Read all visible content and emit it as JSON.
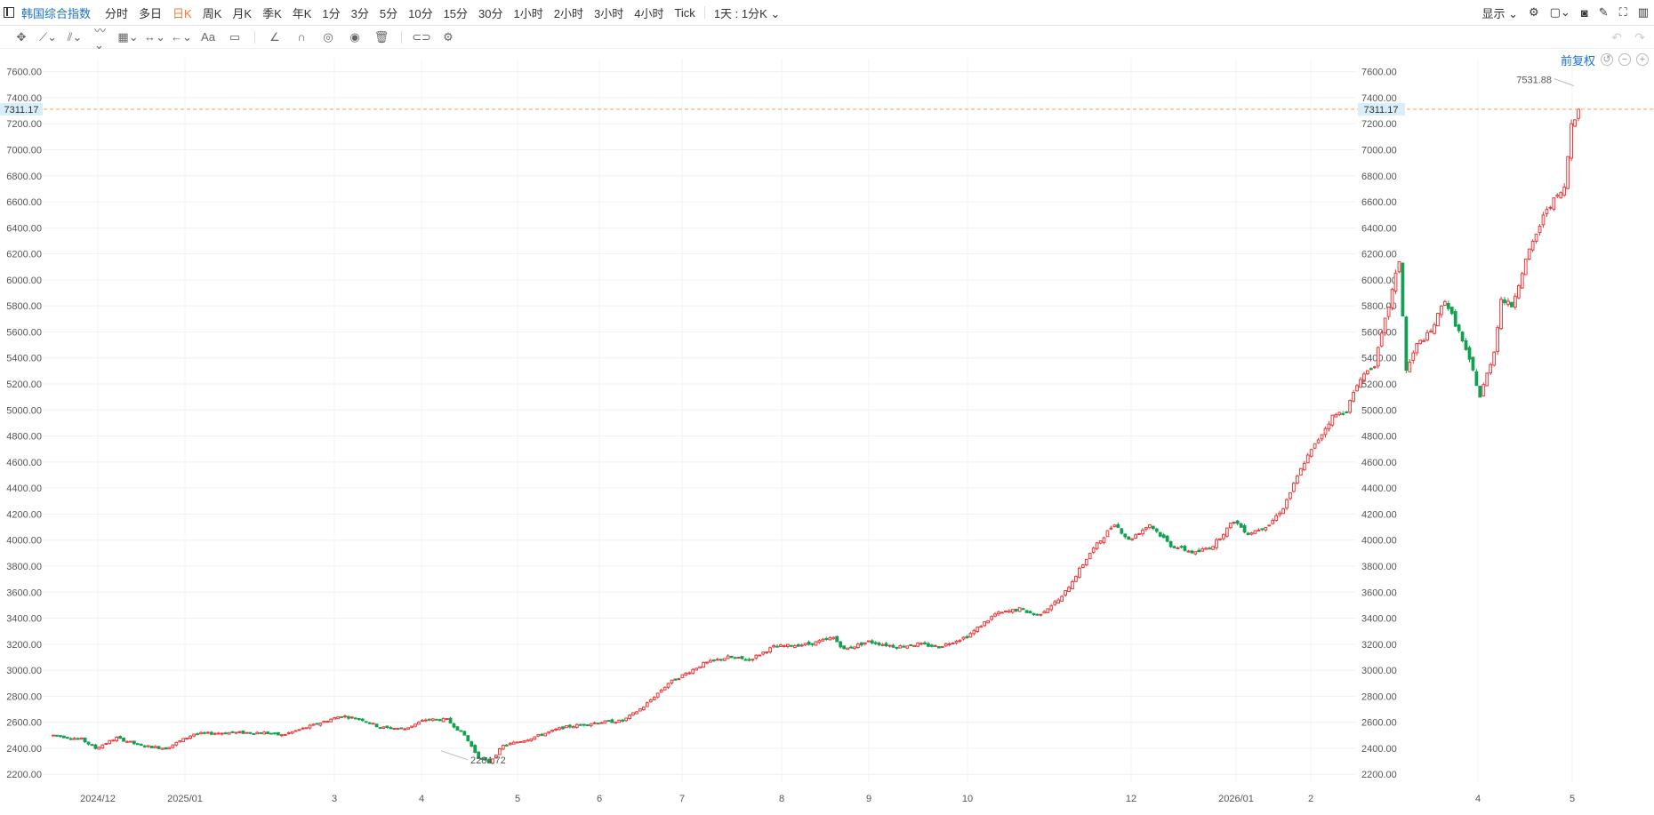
{
  "header": {
    "symbol": "韩国综合指数",
    "periods": [
      "分时",
      "多日",
      "日K",
      "周K",
      "月K",
      "季K",
      "年K",
      "1分",
      "3分",
      "5分",
      "10分",
      "15分",
      "30分",
      "1小时",
      "2小时",
      "3小时",
      "4小时",
      "Tick"
    ],
    "active_period": "日K",
    "kline_select": "1天 : 1分K",
    "display_label": "显示"
  },
  "adjust_label": "前复权",
  "colors": {
    "up": "#e83a3a",
    "down": "#12a150",
    "ref_line": "#f0a050",
    "label_bg": "#d9eefb"
  },
  "chart_data": {
    "type": "candlestick",
    "ylim": [
      2140,
      7700
    ],
    "yticks": [
      2200,
      2400,
      2600,
      2800,
      3000,
      3200,
      3400,
      3600,
      3800,
      4000,
      4200,
      4400,
      4600,
      4800,
      5000,
      5200,
      5400,
      5600,
      5800,
      6000,
      6200,
      6400,
      6600,
      6800,
      7000,
      7200,
      7400,
      7600
    ],
    "ytick_labels": [
      "2200.00",
      "2400.00",
      "2600.00",
      "2800.00",
      "3000.00",
      "3200.00",
      "3400.00",
      "3600.00",
      "3800.00",
      "4000.00",
      "4200.00",
      "4400.00",
      "4600.00",
      "4800.00",
      "5000.00",
      "5200.00",
      "5400.00",
      "5600.00",
      "5800.00",
      "6000.00",
      "6200.00",
      "6400.00",
      "6600.00",
      "6800.00",
      "7000.00",
      "7200.00",
      "7400.00",
      "7600.00"
    ],
    "xticks": [
      "2024/12",
      "2025/01",
      "3",
      "4",
      "5",
      "6",
      "7",
      "8",
      "9",
      "10",
      "12",
      "2026/01",
      "2",
      "4",
      "5"
    ],
    "current_price": 7311.17,
    "current_price_label": "7311.17",
    "max_label": "7531.88",
    "min_label": "2284.72",
    "grid": true,
    "trend": [
      {
        "t": 0,
        "v": 2500
      },
      {
        "t": 8,
        "v": 2470
      },
      {
        "t": 12,
        "v": 2400
      },
      {
        "t": 18,
        "v": 2480
      },
      {
        "t": 25,
        "v": 2420
      },
      {
        "t": 32,
        "v": 2400
      },
      {
        "t": 40,
        "v": 2510
      },
      {
        "t": 50,
        "v": 2520
      },
      {
        "t": 60,
        "v": 2520
      },
      {
        "t": 65,
        "v": 2500
      },
      {
        "t": 72,
        "v": 2560
      },
      {
        "t": 82,
        "v": 2650
      },
      {
        "t": 88,
        "v": 2620
      },
      {
        "t": 93,
        "v": 2560
      },
      {
        "t": 100,
        "v": 2550
      },
      {
        "t": 106,
        "v": 2620
      },
      {
        "t": 112,
        "v": 2620
      },
      {
        "t": 117,
        "v": 2500
      },
      {
        "t": 121,
        "v": 2330
      },
      {
        "t": 124,
        "v": 2290
      },
      {
        "t": 128,
        "v": 2420
      },
      {
        "t": 135,
        "v": 2470
      },
      {
        "t": 145,
        "v": 2560
      },
      {
        "t": 155,
        "v": 2600
      },
      {
        "t": 162,
        "v": 2610
      },
      {
        "t": 168,
        "v": 2720
      },
      {
        "t": 175,
        "v": 2900
      },
      {
        "t": 185,
        "v": 3050
      },
      {
        "t": 192,
        "v": 3100
      },
      {
        "t": 198,
        "v": 3080
      },
      {
        "t": 205,
        "v": 3180
      },
      {
        "t": 215,
        "v": 3200
      },
      {
        "t": 222,
        "v": 3250
      },
      {
        "t": 225,
        "v": 3160
      },
      {
        "t": 232,
        "v": 3220
      },
      {
        "t": 240,
        "v": 3180
      },
      {
        "t": 246,
        "v": 3200
      },
      {
        "t": 252,
        "v": 3180
      },
      {
        "t": 260,
        "v": 3260
      },
      {
        "t": 268,
        "v": 3430
      },
      {
        "t": 275,
        "v": 3470
      },
      {
        "t": 280,
        "v": 3420
      },
      {
        "t": 287,
        "v": 3560
      },
      {
        "t": 295,
        "v": 3900
      },
      {
        "t": 302,
        "v": 4130
      },
      {
        "t": 306,
        "v": 4000
      },
      {
        "t": 312,
        "v": 4120
      },
      {
        "t": 318,
        "v": 3960
      },
      {
        "t": 325,
        "v": 3900
      },
      {
        "t": 330,
        "v": 3960
      },
      {
        "t": 336,
        "v": 4150
      },
      {
        "t": 340,
        "v": 4050
      },
      {
        "t": 346,
        "v": 4120
      },
      {
        "t": 350,
        "v": 4250
      },
      {
        "t": 356,
        "v": 4600
      },
      {
        "t": 364,
        "v": 4950
      },
      {
        "t": 368,
        "v": 5000
      },
      {
        "t": 372,
        "v": 5250
      },
      {
        "t": 376,
        "v": 5350
      },
      {
        "t": 380,
        "v": 5800
      },
      {
        "t": 383,
        "v": 6150
      },
      {
        "t": 385,
        "v": 5300
      },
      {
        "t": 388,
        "v": 5500
      },
      {
        "t": 392,
        "v": 5600
      },
      {
        "t": 396,
        "v": 5850
      },
      {
        "t": 400,
        "v": 5600
      },
      {
        "t": 404,
        "v": 5300
      },
      {
        "t": 406,
        "v": 5100
      },
      {
        "t": 410,
        "v": 5450
      },
      {
        "t": 412,
        "v": 5850
      },
      {
        "t": 415,
        "v": 5800
      },
      {
        "t": 419,
        "v": 6150
      },
      {
        "t": 425,
        "v": 6550
      },
      {
        "t": 430,
        "v": 6700
      },
      {
        "t": 432,
        "v": 7200
      },
      {
        "t": 434,
        "v": 7311
      }
    ]
  }
}
